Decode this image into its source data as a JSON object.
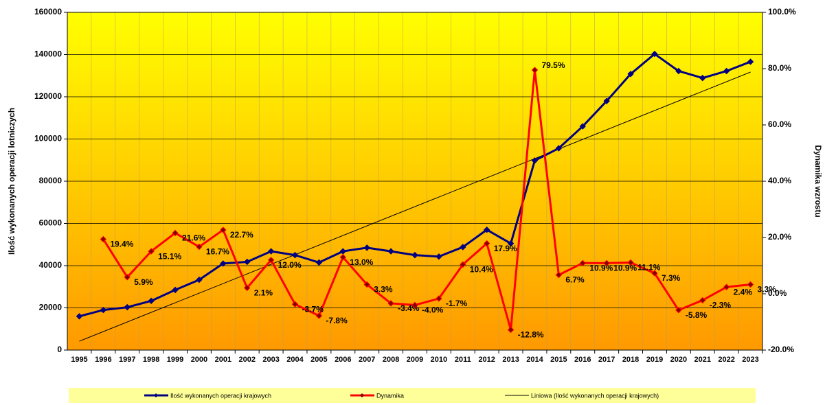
{
  "chart_data": {
    "type": "line",
    "y_label": "Ilość wykonanych operacji lotniczych",
    "y2_label": "Dynamika wzrostu",
    "categories": [
      "1995",
      "1996",
      "1997",
      "1998",
      "1999",
      "2000",
      "2001",
      "2002",
      "2003",
      "2004",
      "2005",
      "2006",
      "2007",
      "2008",
      "2009",
      "2010",
      "2011",
      "2012",
      "2013",
      "2014",
      "2015",
      "2016",
      "2017",
      "2018",
      "2019",
      "2020",
      "2021",
      "2022",
      "2023"
    ],
    "ylim": [
      0,
      160000
    ],
    "yticks": [
      0,
      20000,
      40000,
      60000,
      80000,
      100000,
      120000,
      140000,
      160000
    ],
    "y2lim": [
      -20,
      100
    ],
    "y2ticks": [
      {
        "value": -20,
        "label": "-20.0%"
      },
      {
        "value": 0,
        "label": "0.0%"
      },
      {
        "value": 20,
        "label": "20.0%"
      },
      {
        "value": 40,
        "label": "40.0%"
      },
      {
        "value": 60,
        "label": "60.0%"
      },
      {
        "value": 80,
        "label": "80.0%"
      },
      {
        "value": 100,
        "label": "100.0%"
      }
    ],
    "grid": true,
    "series": [
      {
        "name": "Ilość wykonanych operacji krajowych",
        "color": "#000080",
        "values": [
          16000,
          19000,
          20300,
          23300,
          28500,
          33300,
          41000,
          41800,
          46800,
          45000,
          41500,
          46800,
          48500,
          46800,
          45000,
          44300,
          48800,
          57000,
          50500,
          89800,
          95600,
          106000,
          118000,
          130800,
          140300,
          132200,
          128900,
          132200,
          136600
        ]
      },
      {
        "name": "Dynamika",
        "color": "#ff0000",
        "axis": "y2",
        "values": [
          null,
          19.4,
          5.9,
          15.1,
          21.6,
          16.7,
          22.7,
          2.1,
          12.0,
          -3.7,
          -7.8,
          13.0,
          3.3,
          -3.4,
          -4.0,
          -1.7,
          10.4,
          17.9,
          -12.8,
          79.5,
          6.7,
          10.9,
          10.9,
          11.1,
          7.3,
          -5.8,
          -2.3,
          2.4,
          3.3
        ],
        "value_labels": [
          null,
          "19.4%",
          "5.9%",
          "15.1%",
          "21.6%",
          "16.7%",
          "22.7%",
          "2.1%",
          "12.0%",
          "-3.7%",
          "-7.8%",
          "13.0%",
          "3.3%",
          "-3.4%",
          "-4.0%",
          "-1.7%",
          "10.4%",
          "17.9%",
          "-12.8%",
          "79.5%",
          "6.7%",
          "10.9%",
          "10.9%",
          "11.1%",
          "7.3%",
          "-5.8%",
          "-2.3%",
          "2.4%",
          "3.3%"
        ]
      }
    ],
    "trend": {
      "name": "Liniowa (Ilość wykonanych operacji krajowych)",
      "color": "#000000",
      "start": 4200,
      "end": 131700
    }
  }
}
